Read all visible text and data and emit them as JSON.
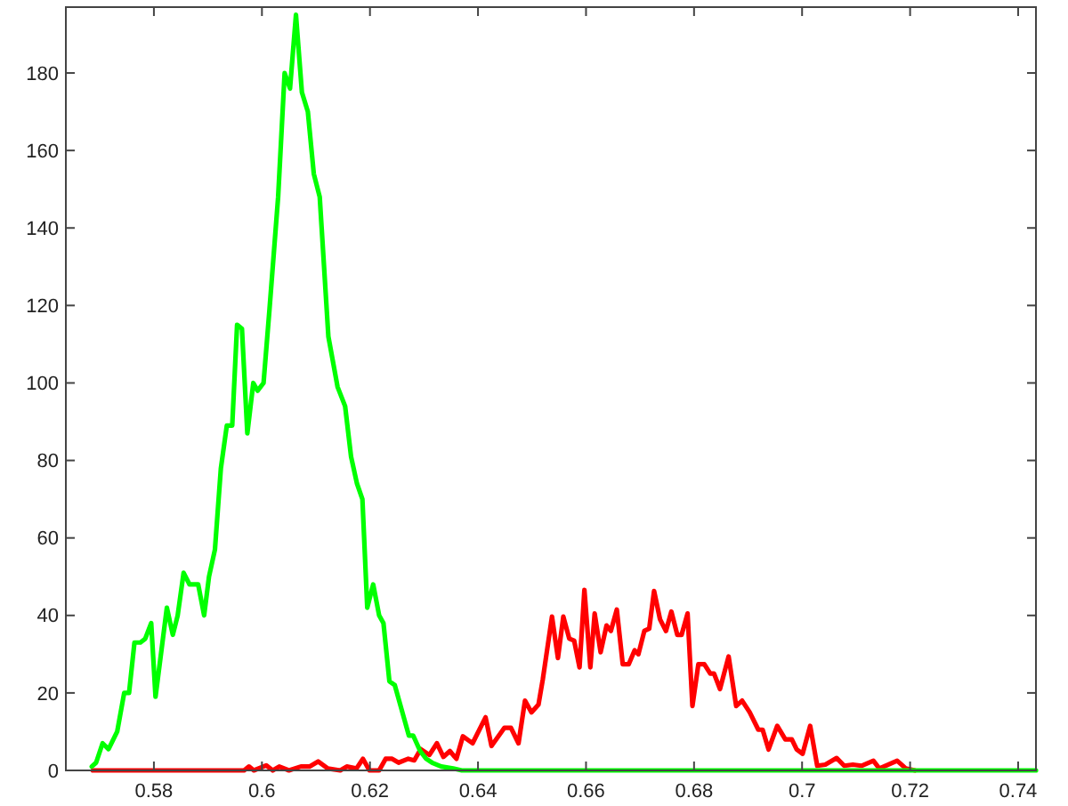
{
  "chart_data": {
    "type": "line",
    "xlim": [
      0.5637,
      0.7433
    ],
    "ylim": [
      0,
      197
    ],
    "xticks": [
      0.58,
      0.6,
      0.62,
      0.64,
      0.66,
      0.68,
      0.7,
      0.72,
      0.74
    ],
    "yticks": [
      0,
      20,
      40,
      60,
      80,
      100,
      120,
      140,
      160,
      180
    ],
    "grid": false,
    "marker": "none",
    "line_style": "solid",
    "series": [
      {
        "color": "#ff0000",
        "x": [
          0.5687,
          0.5967,
          0.5976,
          0.5985,
          0.6008,
          0.602,
          0.6032,
          0.605,
          0.6072,
          0.6088,
          0.6104,
          0.6122,
          0.6145,
          0.6157,
          0.6175,
          0.6187,
          0.6199,
          0.6217,
          0.6229,
          0.6241,
          0.6253,
          0.6271,
          0.6282,
          0.6294,
          0.631,
          0.6324,
          0.6336,
          0.6348,
          0.636,
          0.6372,
          0.639,
          0.6414,
          0.6425,
          0.6449,
          0.6461,
          0.6475,
          0.6487,
          0.6499,
          0.6512,
          0.652,
          0.6537,
          0.6548,
          0.6558,
          0.6569,
          0.6578,
          0.6588,
          0.6597,
          0.6608,
          0.6616,
          0.6627,
          0.6638,
          0.6646,
          0.6657,
          0.6668,
          0.6679,
          0.669,
          0.6697,
          0.6708,
          0.6717,
          0.6726,
          0.6737,
          0.6748,
          0.6758,
          0.6769,
          0.6777,
          0.6788,
          0.6797,
          0.6808,
          0.6819,
          0.683,
          0.6837,
          0.6848,
          0.6864,
          0.6878,
          0.6889,
          0.6903,
          0.6919,
          0.6927,
          0.6938,
          0.6954,
          0.6969,
          0.6981,
          0.699,
          0.7001,
          0.7015,
          0.7028,
          0.7043,
          0.7064,
          0.7078,
          0.7094,
          0.711,
          0.7132,
          0.7143,
          0.7176,
          0.7192,
          0.7209
        ],
        "values": [
          0,
          0,
          1,
          0,
          1.3,
          0,
          1,
          0,
          1,
          1,
          2.3,
          0.5,
          0,
          1,
          0.5,
          3,
          0,
          0,
          3,
          3,
          2,
          3,
          2.6,
          5.5,
          4,
          7,
          3.5,
          5,
          3,
          8.8,
          7,
          13.7,
          6.3,
          11,
          11,
          7,
          18,
          15,
          17,
          23.5,
          39.7,
          29,
          39.7,
          34,
          33.5,
          26.6,
          46.6,
          26.6,
          40.5,
          30.5,
          37.4,
          36,
          41.5,
          27.4,
          27.4,
          31,
          30,
          36,
          36.6,
          46.3,
          39,
          36,
          41,
          35,
          35,
          40.5,
          16.6,
          27.4,
          27.4,
          25,
          25,
          21,
          29.4,
          16.6,
          18,
          15,
          10.5,
          10.5,
          5.4,
          11.5,
          8,
          8,
          5.4,
          4.3,
          11.5,
          1.2,
          1.5,
          3.2,
          1.2,
          1.5,
          1.2,
          2.5,
          0.5,
          2.5,
          0.5,
          0
        ]
      },
      {
        "color": "#00ff00",
        "x": [
          0.5685,
          0.5693,
          0.5705,
          0.5716,
          0.5732,
          0.5745,
          0.5754,
          0.5764,
          0.5775,
          0.5784,
          0.5795,
          0.5803,
          0.5824,
          0.5835,
          0.5844,
          0.5855,
          0.5866,
          0.5882,
          0.5893,
          0.5902,
          0.5913,
          0.5924,
          0.5935,
          0.5945,
          0.5954,
          0.5963,
          0.5973,
          0.5984,
          0.5992,
          0.6003,
          0.6014,
          0.603,
          0.6042,
          0.6052,
          0.6063,
          0.6074,
          0.6085,
          0.6096,
          0.6107,
          0.6123,
          0.614,
          0.6154,
          0.6165,
          0.6176,
          0.6186,
          0.6195,
          0.6206,
          0.6217,
          0.6225,
          0.6236,
          0.6246,
          0.6264,
          0.6272,
          0.628,
          0.6293,
          0.6304,
          0.6315,
          0.6332,
          0.6354,
          0.637,
          0.7433
        ],
        "values": [
          1,
          2,
          7,
          5.5,
          10,
          20,
          20,
          33,
          33,
          34,
          38,
          19,
          42,
          35,
          40,
          51,
          48,
          48,
          40,
          50,
          57,
          78,
          89,
          89,
          115,
          114,
          87,
          100,
          98,
          100,
          119,
          148,
          180,
          176,
          195,
          175,
          170,
          154,
          148,
          112,
          99,
          94,
          81,
          74,
          70,
          42,
          48,
          40,
          38,
          23,
          22,
          13,
          9,
          9,
          5,
          3,
          2,
          1,
          0.5,
          0,
          0
        ]
      }
    ]
  }
}
